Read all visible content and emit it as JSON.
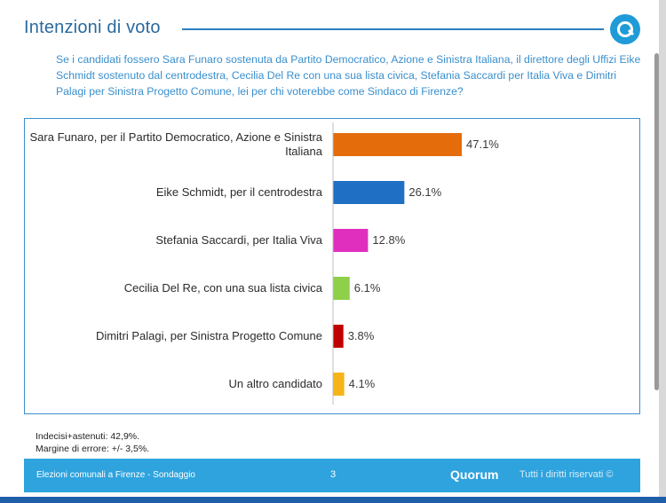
{
  "header": {
    "title": "Intenzioni di voto",
    "logo_icon": "quorum-logo-icon"
  },
  "question": "Se i candidati fossero Sara Funaro sostenuta da Partito Democratico, Azione e Sinistra Italiana, il direttore degli Uffizi Eike Schmidt sostenuto dal centrodestra, Cecilia Del Re con una sua lista civica, Stefania Saccardi per Italia Viva e Dimitri Palagi per Sinistra Progetto Comune, lei per chi voterebbe come Sindaco di Firenze?",
  "chart_data": {
    "type": "bar",
    "orientation": "horizontal",
    "title": "Intenzioni di voto",
    "xlabel": "",
    "ylabel": "",
    "categories": [
      "Sara Funaro, per il Partito Democratico, Azione e Sinistra Italiana",
      "Eike Schmidt, per il centrodestra",
      "Stefania Saccardi, per Italia Viva",
      "Cecilia Del Re, con una sua lista civica",
      "Dimitri Palagi, per Sinistra Progetto Comune",
      "Un altro candidato"
    ],
    "values": [
      47.1,
      26.1,
      12.8,
      6.1,
      3.8,
      4.1
    ],
    "value_labels": [
      "47.1%",
      "26.1%",
      "12.8%",
      "6.1%",
      "3.8%",
      "4.1%"
    ],
    "colors": [
      "#e46c0a",
      "#1f6fc5",
      "#e02fbf",
      "#8ed04a",
      "#c00000",
      "#f5b417"
    ],
    "xlim": [
      0,
      50
    ],
    "grid": false
  },
  "notes": {
    "undecided": "Indecisi+astenuti: 42,9%.",
    "margin": "Margine di errore: +/- 3,5%."
  },
  "footer": {
    "left": "Elezioni comunali a Firenze - Sondaggio",
    "page": "3",
    "brand": "Quorum",
    "rights": "Tutti i diritti riservati ©"
  }
}
